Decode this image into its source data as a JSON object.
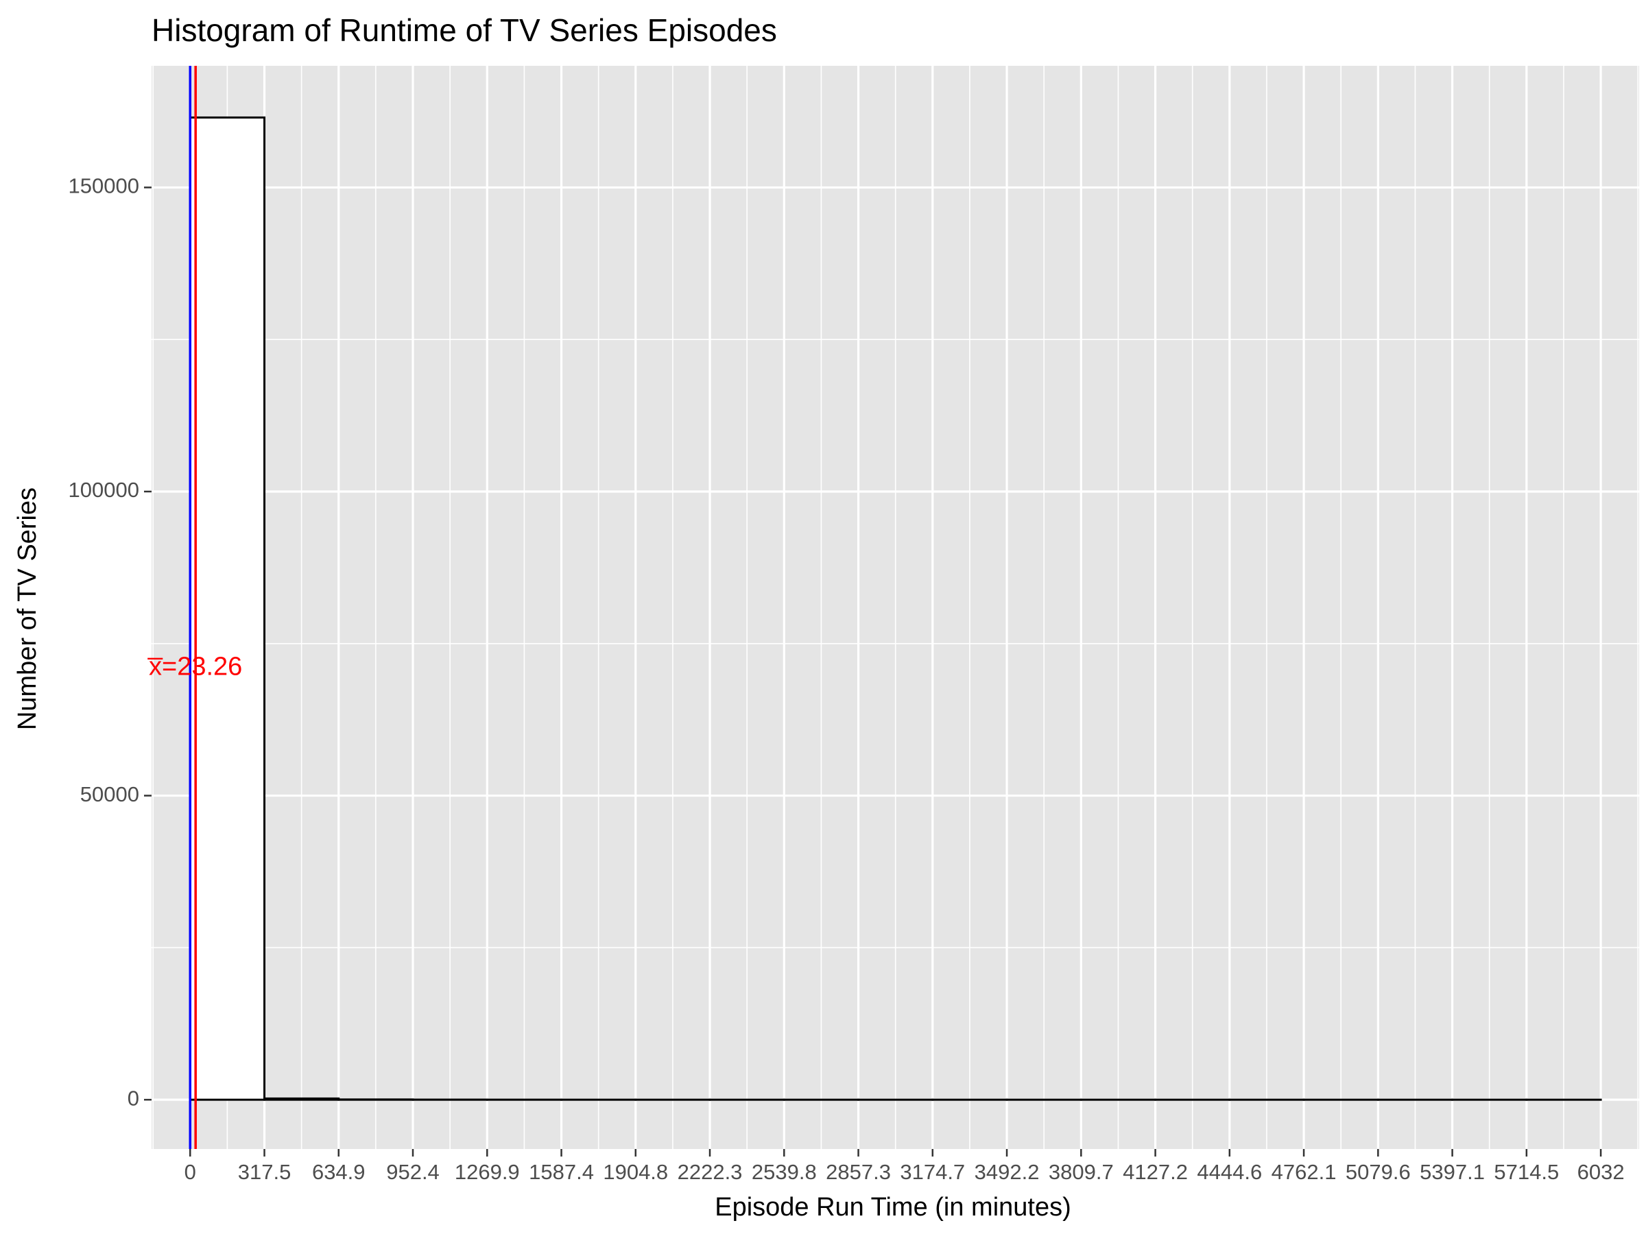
{
  "chart_data": {
    "type": "bar",
    "title": "Histogram of Runtime of TV Series Episodes",
    "xlabel": "Episode Run Time (in minutes)",
    "ylabel": "Number of TV Series",
    "xlim": [
      -165,
      6196
    ],
    "ylim": [
      -8100,
      170000
    ],
    "x_ticks": [
      0,
      317.5,
      634.9,
      952.4,
      1269.9,
      1587.4,
      1904.8,
      2222.3,
      2539.8,
      2857.3,
      3174.7,
      3492.2,
      3809.7,
      4127.2,
      4444.6,
      4762.1,
      5079.6,
      5397.1,
      5714.5,
      6032
    ],
    "x_tick_labels": [
      "0",
      "317.5",
      "634.9",
      "952.4",
      "1269.9",
      "1587.4",
      "1904.8",
      "2222.3",
      "2539.8",
      "2857.3",
      "3174.7",
      "3492.2",
      "3809.7",
      "4127.2",
      "4444.6",
      "4762.1",
      "5079.6",
      "5397.1",
      "5714.5",
      "6032"
    ],
    "y_ticks": [
      0,
      50000,
      100000,
      150000
    ],
    "y_tick_labels": [
      "0",
      "50000",
      "100000",
      "150000"
    ],
    "bins": [
      {
        "x0": 0,
        "x1": 317.5,
        "count": 161500
      },
      {
        "x0": 317.5,
        "x1": 634.9,
        "count": 200
      },
      {
        "x0": 634.9,
        "x1": 952.4,
        "count": 40
      },
      {
        "x0": 952.4,
        "x1": 1269.9,
        "count": 15
      },
      {
        "x0": 1269.9,
        "x1": 1587.4,
        "count": 8
      },
      {
        "x0": 1587.4,
        "x1": 1904.8,
        "count": 4
      },
      {
        "x0": 1904.8,
        "x1": 2222.3,
        "count": 3
      },
      {
        "x0": 2222.3,
        "x1": 2539.8,
        "count": 2
      },
      {
        "x0": 2539.8,
        "x1": 2857.3,
        "count": 2
      },
      {
        "x0": 2857.3,
        "x1": 3174.7,
        "count": 1
      },
      {
        "x0": 3174.7,
        "x1": 3492.2,
        "count": 1
      },
      {
        "x0": 3492.2,
        "x1": 3809.7,
        "count": 1
      },
      {
        "x0": 3809.7,
        "x1": 4127.2,
        "count": 1
      },
      {
        "x0": 4127.2,
        "x1": 4444.6,
        "count": 0
      },
      {
        "x0": 4444.6,
        "x1": 4762.1,
        "count": 0
      },
      {
        "x0": 4762.1,
        "x1": 5079.6,
        "count": 0
      },
      {
        "x0": 5079.6,
        "x1": 5397.1,
        "count": 0
      },
      {
        "x0": 5397.1,
        "x1": 5714.5,
        "count": 0
      },
      {
        "x0": 5714.5,
        "x1": 6032,
        "count": 1
      }
    ],
    "vlines": [
      {
        "x": 0,
        "color": "#0000ff"
      },
      {
        "x": 23.26,
        "color": "#ff0000"
      }
    ],
    "annotation": {
      "text": "x̅=23.26",
      "x": 23.26,
      "y": 71000,
      "color": "#ff0000"
    },
    "colors": {
      "panel_bg": "#e5e5e5",
      "grid": "#ffffff",
      "bar_fill": "#ffffff",
      "bar_stroke": "#000000",
      "tick_text": "#4d4d4d",
      "tick_mark": "#333333"
    },
    "grid": true,
    "legend": "none"
  }
}
